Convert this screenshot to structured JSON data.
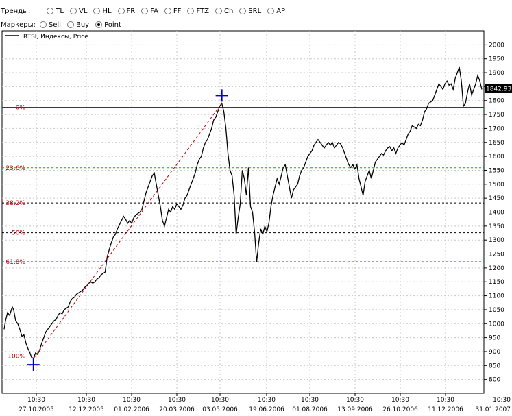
{
  "trends": {
    "label": "Тренды:",
    "options": [
      {
        "label": "TL",
        "checked": false
      },
      {
        "label": "VL",
        "checked": false
      },
      {
        "label": "HL",
        "checked": false
      },
      {
        "label": "FR",
        "checked": false
      },
      {
        "label": "FA",
        "checked": false
      },
      {
        "label": "FF",
        "checked": false
      },
      {
        "label": "FTZ",
        "checked": false
      },
      {
        "label": "Ch",
        "checked": false
      },
      {
        "label": "SRL",
        "checked": false
      },
      {
        "label": "AP",
        "checked": false
      }
    ]
  },
  "markers": {
    "label": "Маркеры:",
    "options": [
      {
        "label": "Sell",
        "checked": false
      },
      {
        "label": "Buy",
        "checked": false
      },
      {
        "label": "Point",
        "checked": true
      }
    ]
  },
  "chart_data": {
    "type": "line",
    "legend": "RTSI, Индексы, Price",
    "legend_position": "top-left",
    "ylim": [
      750,
      2050
    ],
    "y_ticks": [
      800,
      850,
      900,
      950,
      1000,
      1050,
      1100,
      1150,
      1200,
      1250,
      1300,
      1350,
      1400,
      1450,
      1500,
      1550,
      1600,
      1650,
      1700,
      1750,
      1800,
      1850,
      1900,
      1950,
      2000
    ],
    "x_ticks": [
      {
        "time": "10:30",
        "date": "27.10.2005"
      },
      {
        "time": "10:30",
        "date": "12.12.2005"
      },
      {
        "time": "10:30",
        "date": "01.02.2006"
      },
      {
        "time": "10:30",
        "date": "20.03.2006"
      },
      {
        "time": "10:30",
        "date": "03.05.2006"
      },
      {
        "time": "10:30",
        "date": "19.06.2006"
      },
      {
        "time": "10:30",
        "date": "01.08.2006"
      },
      {
        "time": "10:30",
        "date": "13.09.2006"
      },
      {
        "time": "10:30",
        "date": "26.10.2006"
      },
      {
        "time": "10:30",
        "date": "11.12.2006"
      },
      {
        "time": "10:30",
        "date": "31.01.2007"
      }
    ],
    "current_price": "1842.93",
    "current_value": 1842.93,
    "grid": true,
    "colors": {
      "price": "#000000",
      "fib": "#c00000",
      "fib_zero": "#8b1a1a",
      "low": "#0000cc",
      "marker": "#0000cc",
      "green": "#00bb00",
      "black_dashed": "#000000"
    },
    "fibonacci": [
      {
        "label": "0%",
        "value": 1776,
        "style": "solid-red"
      },
      {
        "label": "23.6%",
        "value": 1559,
        "style": "dashed-green"
      },
      {
        "label": "38.2%",
        "value": 1433,
        "style": "dashed-black"
      },
      {
        "label": "50%",
        "value": 1326,
        "style": "dashed-black"
      },
      {
        "label": "61.8%",
        "value": 1222,
        "style": "dashed-green"
      },
      {
        "label": "100%",
        "value": 884,
        "style": "solid-blue"
      }
    ],
    "series": [
      {
        "points": [
          [
            0,
            980
          ],
          [
            2,
            1010
          ],
          [
            5,
            1040
          ],
          [
            8,
            1030
          ],
          [
            12,
            1060
          ],
          [
            14,
            1050
          ],
          [
            17,
            1010
          ],
          [
            20,
            1000
          ],
          [
            23,
            980
          ],
          [
            26,
            955
          ],
          [
            29,
            960
          ],
          [
            32,
            930
          ],
          [
            35,
            910
          ],
          [
            38,
            895
          ],
          [
            40,
            880
          ],
          [
            43,
            875
          ],
          [
            46,
            895
          ],
          [
            49,
            890
          ],
          [
            52,
            905
          ],
          [
            55,
            930
          ],
          [
            58,
            950
          ],
          [
            61,
            970
          ],
          [
            64,
            980
          ],
          [
            67,
            990
          ],
          [
            70,
            1000
          ],
          [
            73,
            1010
          ],
          [
            76,
            1015
          ],
          [
            79,
            1030
          ],
          [
            82,
            1040
          ],
          [
            85,
            1035
          ],
          [
            88,
            1050
          ],
          [
            91,
            1055
          ],
          [
            94,
            1060
          ],
          [
            97,
            1080
          ],
          [
            100,
            1090
          ],
          [
            103,
            1095
          ],
          [
            106,
            1105
          ],
          [
            109,
            1110
          ],
          [
            112,
            1115
          ],
          [
            115,
            1120
          ],
          [
            118,
            1130
          ],
          [
            121,
            1135
          ],
          [
            124,
            1145
          ],
          [
            127,
            1150
          ],
          [
            130,
            1145
          ],
          [
            133,
            1150
          ],
          [
            136,
            1160
          ],
          [
            139,
            1165
          ],
          [
            142,
            1175
          ],
          [
            145,
            1180
          ],
          [
            148,
            1185
          ],
          [
            151,
            1240
          ],
          [
            154,
            1265
          ],
          [
            157,
            1290
          ],
          [
            160,
            1310
          ],
          [
            163,
            1320
          ],
          [
            166,
            1340
          ],
          [
            169,
            1355
          ],
          [
            172,
            1370
          ],
          [
            175,
            1385
          ],
          [
            178,
            1375
          ],
          [
            181,
            1360
          ],
          [
            184,
            1370
          ],
          [
            187,
            1360
          ],
          [
            190,
            1380
          ],
          [
            193,
            1390
          ],
          [
            196,
            1395
          ],
          [
            199,
            1400
          ],
          [
            202,
            1410
          ],
          [
            205,
            1440
          ],
          [
            208,
            1470
          ],
          [
            211,
            1490
          ],
          [
            214,
            1510
          ],
          [
            217,
            1530
          ],
          [
            220,
            1540
          ],
          [
            223,
            1500
          ],
          [
            226,
            1460
          ],
          [
            229,
            1420
          ],
          [
            232,
            1370
          ],
          [
            235,
            1350
          ],
          [
            238,
            1380
          ],
          [
            241,
            1410
          ],
          [
            244,
            1400
          ],
          [
            247,
            1420
          ],
          [
            250,
            1410
          ],
          [
            253,
            1430
          ],
          [
            256,
            1420
          ],
          [
            259,
            1410
          ],
          [
            262,
            1425
          ],
          [
            265,
            1450
          ],
          [
            268,
            1460
          ],
          [
            271,
            1480
          ],
          [
            274,
            1500
          ],
          [
            277,
            1520
          ],
          [
            280,
            1540
          ],
          [
            283,
            1570
          ],
          [
            286,
            1590
          ],
          [
            289,
            1600
          ],
          [
            292,
            1630
          ],
          [
            295,
            1650
          ],
          [
            298,
            1660
          ],
          [
            301,
            1680
          ],
          [
            304,
            1700
          ],
          [
            307,
            1730
          ],
          [
            310,
            1740
          ],
          [
            313,
            1760
          ],
          [
            316,
            1780
          ],
          [
            319,
            1790
          ],
          [
            322,
            1760
          ],
          [
            325,
            1700
          ],
          [
            328,
            1610
          ],
          [
            331,
            1550
          ],
          [
            334,
            1530
          ],
          [
            337,
            1460
          ],
          [
            340,
            1320
          ],
          [
            343,
            1380
          ],
          [
            346,
            1430
          ],
          [
            349,
            1550
          ],
          [
            352,
            1520
          ],
          [
            355,
            1460
          ],
          [
            358,
            1560
          ],
          [
            361,
            1420
          ],
          [
            364,
            1400
          ],
          [
            367,
            1330
          ],
          [
            370,
            1220
          ],
          [
            373,
            1290
          ],
          [
            376,
            1340
          ],
          [
            379,
            1320
          ],
          [
            382,
            1350
          ],
          [
            385,
            1330
          ],
          [
            388,
            1360
          ],
          [
            391,
            1420
          ],
          [
            394,
            1460
          ],
          [
            397,
            1490
          ],
          [
            400,
            1520
          ],
          [
            403,
            1500
          ],
          [
            406,
            1530
          ],
          [
            409,
            1560
          ],
          [
            412,
            1570
          ],
          [
            415,
            1530
          ],
          [
            418,
            1490
          ],
          [
            421,
            1450
          ],
          [
            424,
            1480
          ],
          [
            427,
            1490
          ],
          [
            430,
            1500
          ],
          [
            433,
            1530
          ],
          [
            436,
            1550
          ],
          [
            439,
            1560
          ],
          [
            442,
            1580
          ],
          [
            445,
            1600
          ],
          [
            448,
            1610
          ],
          [
            451,
            1620
          ],
          [
            454,
            1640
          ],
          [
            457,
            1650
          ],
          [
            460,
            1660
          ],
          [
            463,
            1650
          ],
          [
            466,
            1640
          ],
          [
            469,
            1630
          ],
          [
            472,
            1640
          ],
          [
            475,
            1650
          ],
          [
            478,
            1640
          ],
          [
            481,
            1650
          ],
          [
            484,
            1630
          ],
          [
            487,
            1640
          ],
          [
            490,
            1650
          ],
          [
            493,
            1645
          ],
          [
            496,
            1630
          ],
          [
            499,
            1610
          ],
          [
            502,
            1590
          ],
          [
            505,
            1570
          ],
          [
            508,
            1560
          ],
          [
            511,
            1570
          ],
          [
            514,
            1555
          ],
          [
            517,
            1570
          ],
          [
            520,
            1520
          ],
          [
            523,
            1490
          ],
          [
            526,
            1460
          ],
          [
            529,
            1510
          ],
          [
            532,
            1530
          ],
          [
            535,
            1550
          ],
          [
            538,
            1520
          ],
          [
            541,
            1550
          ],
          [
            544,
            1580
          ],
          [
            547,
            1590
          ],
          [
            550,
            1600
          ],
          [
            553,
            1610
          ],
          [
            556,
            1605
          ],
          [
            559,
            1620
          ],
          [
            562,
            1630
          ],
          [
            565,
            1635
          ],
          [
            568,
            1620
          ],
          [
            571,
            1630
          ],
          [
            574,
            1610
          ],
          [
            577,
            1630
          ],
          [
            580,
            1640
          ],
          [
            583,
            1650
          ],
          [
            586,
            1640
          ],
          [
            589,
            1660
          ],
          [
            592,
            1680
          ],
          [
            595,
            1690
          ],
          [
            598,
            1710
          ],
          [
            601,
            1705
          ],
          [
            604,
            1700
          ],
          [
            607,
            1715
          ],
          [
            610,
            1710
          ],
          [
            613,
            1730
          ],
          [
            616,
            1760
          ],
          [
            619,
            1770
          ],
          [
            622,
            1790
          ],
          [
            625,
            1795
          ],
          [
            628,
            1800
          ],
          [
            631,
            1820
          ],
          [
            634,
            1840
          ],
          [
            637,
            1860
          ],
          [
            640,
            1850
          ],
          [
            643,
            1840
          ],
          [
            646,
            1860
          ],
          [
            649,
            1870
          ],
          [
            652,
            1855
          ],
          [
            655,
            1860
          ],
          [
            658,
            1840
          ],
          [
            661,
            1880
          ],
          [
            664,
            1900
          ],
          [
            667,
            1920
          ],
          [
            670,
            1870
          ],
          [
            673,
            1780
          ],
          [
            676,
            1790
          ],
          [
            679,
            1830
          ],
          [
            682,
            1860
          ],
          [
            685,
            1820
          ],
          [
            688,
            1840
          ],
          [
            691,
            1860
          ],
          [
            694,
            1890
          ],
          [
            697,
            1870
          ],
          [
            700,
            1840
          ]
        ]
      }
    ]
  }
}
